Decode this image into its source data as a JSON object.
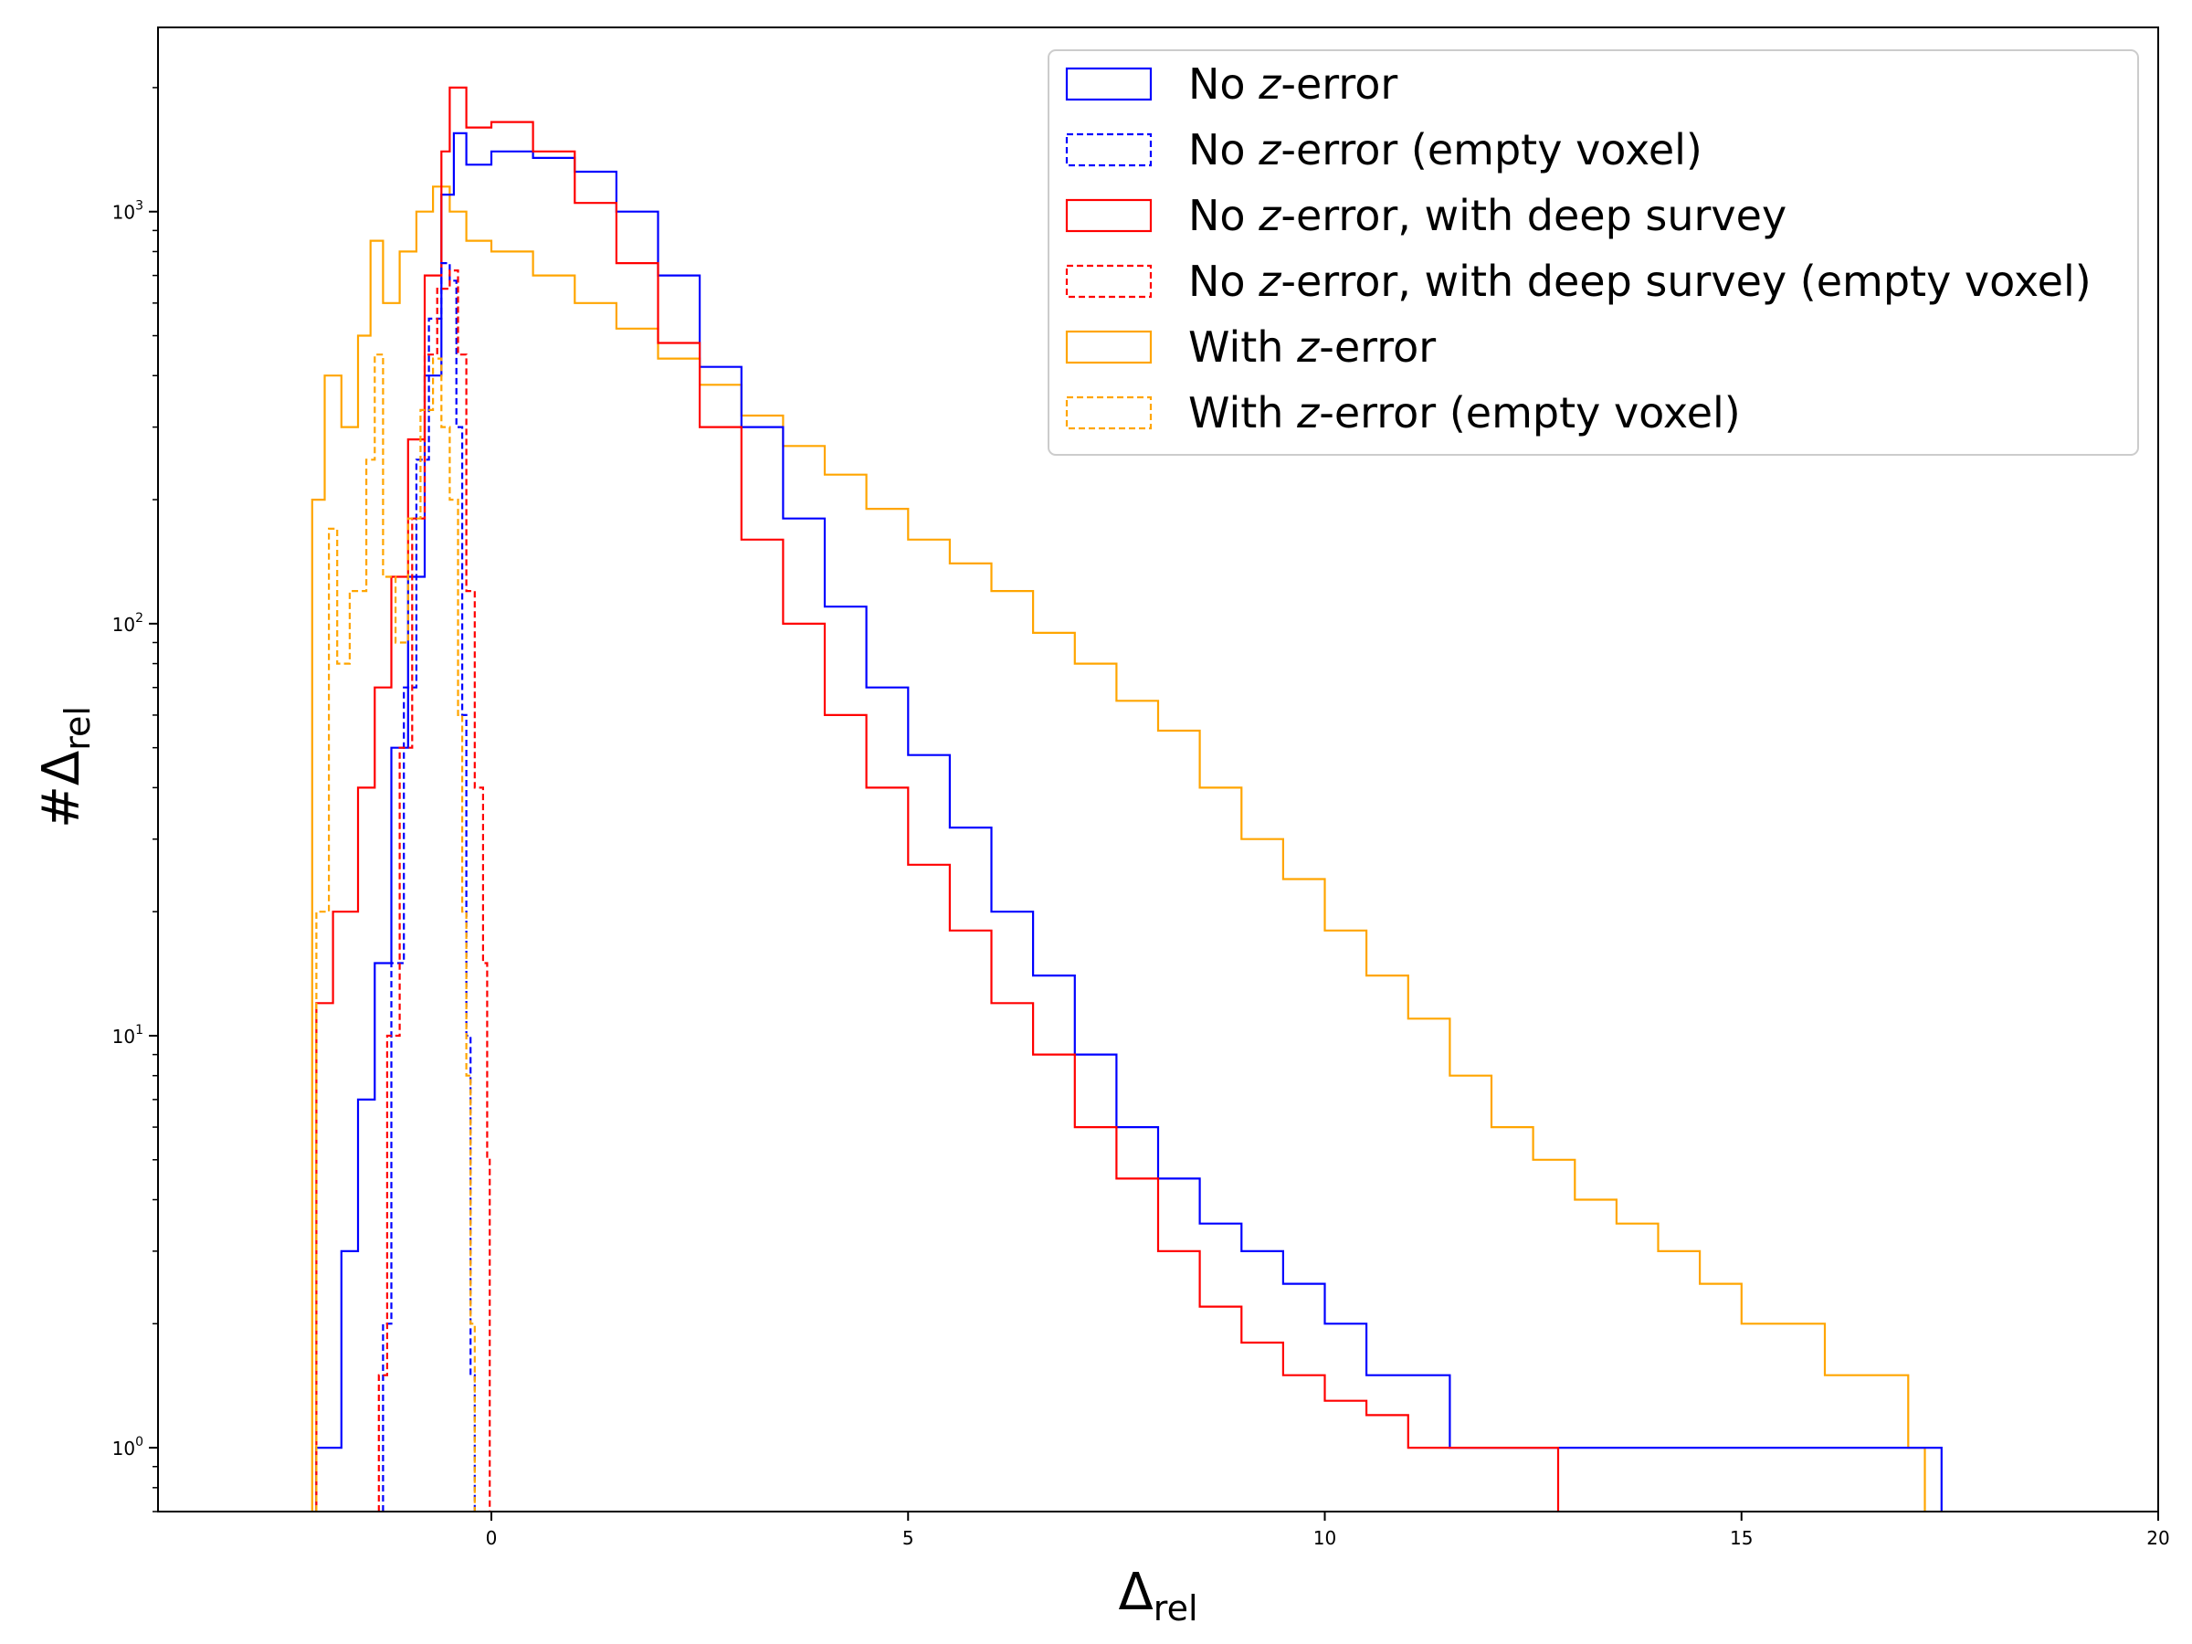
{
  "chart_data": {
    "type": "line",
    "subtype": "step-histogram",
    "title": "",
    "xlabel": {
      "main": "Δ",
      "sub": "rel"
    },
    "ylabel": {
      "prefix": "#",
      "main": "Δ",
      "sub": "rel"
    },
    "xlim": [
      -4,
      20
    ],
    "ylim": [
      0.7,
      2800
    ],
    "yscale": "log",
    "xticks": [
      0,
      5,
      10,
      15,
      20
    ],
    "xtick_labels": [
      "0",
      "5",
      "10",
      "15",
      "20"
    ],
    "yticks": [
      1,
      10,
      100,
      1000
    ],
    "ytick_labels": [
      {
        "base": "10",
        "exp": "0"
      },
      {
        "base": "10",
        "exp": "1"
      },
      {
        "base": "10",
        "exp": "2"
      },
      {
        "base": "10",
        "exp": "3"
      }
    ],
    "legend_position": "top-right",
    "legend": [
      {
        "pre": "No ",
        "z": "z",
        "post": "-error",
        "color": "#0000ff",
        "dashed": false
      },
      {
        "pre": "No ",
        "z": "z",
        "post": "-error (empty voxel)",
        "color": "#0000ff",
        "dashed": true
      },
      {
        "pre": "No ",
        "z": "z",
        "post": "-error, with deep survey",
        "color": "#ff0000",
        "dashed": false
      },
      {
        "pre": "No ",
        "z": "z",
        "post": "-error, with deep survey (empty voxel)",
        "color": "#ff0000",
        "dashed": true
      },
      {
        "pre": "With ",
        "z": "z",
        "post": "-error",
        "color": "#ffa500",
        "dashed": false
      },
      {
        "pre": "With ",
        "z": "z",
        "post": "-error (empty voxel)",
        "color": "#ffa500",
        "dashed": true
      }
    ],
    "series": [
      {
        "name": "With z-error",
        "color": "#ffa500",
        "dashed": false,
        "points": [
          [
            -2.15,
            0.7
          ],
          [
            -2.15,
            200
          ],
          [
            -2.0,
            400
          ],
          [
            -1.8,
            300
          ],
          [
            -1.6,
            500
          ],
          [
            -1.45,
            850
          ],
          [
            -1.3,
            600
          ],
          [
            -1.1,
            800
          ],
          [
            -0.9,
            1000
          ],
          [
            -0.7,
            1150
          ],
          [
            -0.5,
            1000
          ],
          [
            -0.3,
            850
          ],
          [
            0,
            800
          ],
          [
            0.5,
            700
          ],
          [
            1,
            600
          ],
          [
            1.5,
            520
          ],
          [
            2,
            440
          ],
          [
            2.5,
            380
          ],
          [
            3,
            320
          ],
          [
            3.5,
            270
          ],
          [
            4,
            230
          ],
          [
            4.5,
            190
          ],
          [
            5,
            160
          ],
          [
            5.5,
            140
          ],
          [
            6,
            120
          ],
          [
            6.5,
            95
          ],
          [
            7,
            80
          ],
          [
            7.5,
            65
          ],
          [
            8,
            55
          ],
          [
            8.5,
            40
          ],
          [
            9,
            30
          ],
          [
            9.5,
            24
          ],
          [
            10,
            18
          ],
          [
            10.5,
            14
          ],
          [
            11,
            11
          ],
          [
            11.5,
            8
          ],
          [
            12,
            6
          ],
          [
            12.5,
            5
          ],
          [
            13,
            4
          ],
          [
            13.5,
            3.5
          ],
          [
            14,
            3
          ],
          [
            14.5,
            2.5
          ],
          [
            15,
            2
          ],
          [
            15.5,
            2
          ],
          [
            16,
            1.5
          ],
          [
            16.5,
            1.5
          ],
          [
            17,
            1
          ],
          [
            17.2,
            1
          ],
          [
            17.2,
            0.7
          ]
        ]
      },
      {
        "name": "No z-error",
        "color": "#0000ff",
        "dashed": false,
        "points": [
          [
            -2.1,
            0.7
          ],
          [
            -2.1,
            1
          ],
          [
            -1.8,
            3
          ],
          [
            -1.6,
            7
          ],
          [
            -1.4,
            15
          ],
          [
            -1.2,
            50
          ],
          [
            -1.0,
            130
          ],
          [
            -0.8,
            400
          ],
          [
            -0.6,
            1100
          ],
          [
            -0.45,
            1550
          ],
          [
            -0.3,
            1300
          ],
          [
            0,
            1400
          ],
          [
            0.5,
            1350
          ],
          [
            1,
            1250
          ],
          [
            1.5,
            1000
          ],
          [
            2,
            700
          ],
          [
            2.5,
            420
          ],
          [
            3,
            300
          ],
          [
            3.5,
            180
          ],
          [
            4,
            110
          ],
          [
            4.5,
            70
          ],
          [
            5,
            48
          ],
          [
            5.5,
            32
          ],
          [
            6,
            20
          ],
          [
            6.5,
            14
          ],
          [
            7,
            9
          ],
          [
            7.5,
            6
          ],
          [
            8,
            4.5
          ],
          [
            8.5,
            3.5
          ],
          [
            9,
            3
          ],
          [
            9.5,
            2.5
          ],
          [
            10,
            2
          ],
          [
            10.5,
            1.5
          ],
          [
            11,
            1.5
          ],
          [
            11.5,
            1
          ],
          [
            12,
            1
          ],
          [
            13,
            1
          ],
          [
            14,
            1
          ],
          [
            15,
            1
          ],
          [
            16,
            1
          ],
          [
            17,
            1
          ],
          [
            17.4,
            1
          ],
          [
            17.4,
            0.7
          ]
        ]
      },
      {
        "name": "No z-error, with deep survey",
        "color": "#ff0000",
        "dashed": false,
        "points": [
          [
            -2.1,
            0.7
          ],
          [
            -2.1,
            12
          ],
          [
            -1.9,
            20
          ],
          [
            -1.6,
            40
          ],
          [
            -1.4,
            70
          ],
          [
            -1.2,
            130
          ],
          [
            -1.0,
            280
          ],
          [
            -0.8,
            700
          ],
          [
            -0.6,
            1400
          ],
          [
            -0.5,
            2000
          ],
          [
            -0.3,
            1600
          ],
          [
            0,
            1650
          ],
          [
            0.5,
            1400
          ],
          [
            1,
            1050
          ],
          [
            1.5,
            750
          ],
          [
            2,
            480
          ],
          [
            2.5,
            300
          ],
          [
            3,
            160
          ],
          [
            3.5,
            100
          ],
          [
            4,
            60
          ],
          [
            4.5,
            40
          ],
          [
            5,
            26
          ],
          [
            5.5,
            18
          ],
          [
            6,
            12
          ],
          [
            6.5,
            9
          ],
          [
            7,
            6
          ],
          [
            7.5,
            4.5
          ],
          [
            8,
            3
          ],
          [
            8.5,
            2.2
          ],
          [
            9,
            1.8
          ],
          [
            9.5,
            1.5
          ],
          [
            10,
            1.3
          ],
          [
            10.5,
            1.2
          ],
          [
            11,
            1
          ],
          [
            11.5,
            1
          ],
          [
            12,
            1
          ],
          [
            12.5,
            1
          ],
          [
            12.8,
            1
          ],
          [
            12.8,
            0.7
          ]
        ]
      },
      {
        "name": "No z-error (empty voxel)",
        "color": "#0000ff",
        "dashed": true,
        "points": [
          [
            -1.3,
            0.7
          ],
          [
            -1.3,
            2
          ],
          [
            -1.2,
            15
          ],
          [
            -1.05,
            70
          ],
          [
            -0.9,
            250
          ],
          [
            -0.75,
            550
          ],
          [
            -0.6,
            750
          ],
          [
            -0.5,
            680
          ],
          [
            -0.42,
            300
          ],
          [
            -0.35,
            60
          ],
          [
            -0.3,
            10
          ],
          [
            -0.25,
            1.5
          ],
          [
            -0.2,
            0.7
          ]
        ]
      },
      {
        "name": "No z-error, with deep survey (empty voxel)",
        "color": "#ff0000",
        "dashed": true,
        "points": [
          [
            -1.35,
            0.7
          ],
          [
            -1.35,
            1.5
          ],
          [
            -1.25,
            10
          ],
          [
            -1.1,
            50
          ],
          [
            -0.95,
            180
          ],
          [
            -0.8,
            450
          ],
          [
            -0.65,
            650
          ],
          [
            -0.5,
            720
          ],
          [
            -0.4,
            450
          ],
          [
            -0.3,
            120
          ],
          [
            -0.2,
            40
          ],
          [
            -0.1,
            15
          ],
          [
            -0.05,
            5
          ],
          [
            -0.02,
            0.7
          ]
        ]
      },
      {
        "name": "With z-error (empty voxel)",
        "color": "#ffa500",
        "dashed": true,
        "points": [
          [
            -2.1,
            0.7
          ],
          [
            -2.1,
            20
          ],
          [
            -1.95,
            170
          ],
          [
            -1.85,
            80
          ],
          [
            -1.7,
            120
          ],
          [
            -1.5,
            250
          ],
          [
            -1.4,
            450
          ],
          [
            -1.3,
            130
          ],
          [
            -1.15,
            90
          ],
          [
            -1.0,
            180
          ],
          [
            -0.85,
            330
          ],
          [
            -0.7,
            440
          ],
          [
            -0.6,
            300
          ],
          [
            -0.5,
            200
          ],
          [
            -0.4,
            60
          ],
          [
            -0.35,
            20
          ],
          [
            -0.3,
            8
          ],
          [
            -0.25,
            2
          ],
          [
            -0.2,
            0.7
          ]
        ]
      }
    ]
  }
}
